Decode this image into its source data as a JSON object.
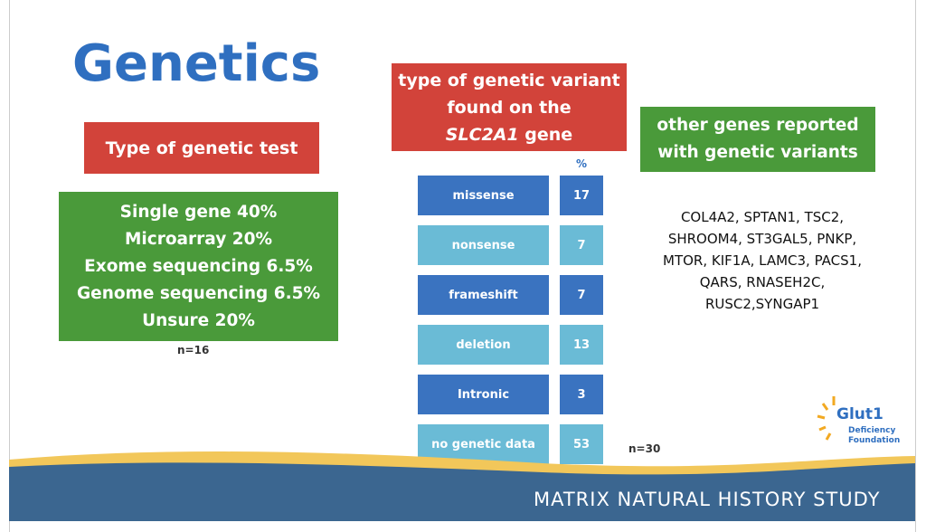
{
  "title": "Genetics",
  "test_type": {
    "header": "Type of genetic test",
    "items": [
      "Single gene 40%",
      "Microarray 20%",
      "Exome sequencing 6.5%",
      "Genome sequencing 6.5%",
      "Unsure 20%"
    ],
    "note": "n=16"
  },
  "variant": {
    "header_before": "type of genetic variant found on the",
    "header_gene": "SLC2A1",
    "header_after": "gene",
    "column_label": "%",
    "rows": [
      [
        "missense",
        "17"
      ],
      [
        "nonsense",
        "7"
      ],
      [
        "frameshift",
        "7"
      ],
      [
        "deletion",
        "13"
      ],
      [
        "Intronic",
        "3"
      ],
      [
        "no genetic data",
        "53"
      ]
    ],
    "note": "n=30"
  },
  "other_genes": {
    "header": "other genes reported with genetic variants",
    "lines": [
      "COL4A2, SPTAN1, TSC2,",
      "SHROOM4, ST3GAL5, PNKP,",
      "MTOR, KIF1A, LAMC3, PACS1,",
      "QARS, RNASEH2C,",
      "RUSC2,SYNGAP1"
    ]
  },
  "logo": {
    "name": "Glut1",
    "line1": "Deficiency",
    "line2": "Foundation"
  },
  "footer": "MATRIX NATURAL HISTORY STUDY"
}
